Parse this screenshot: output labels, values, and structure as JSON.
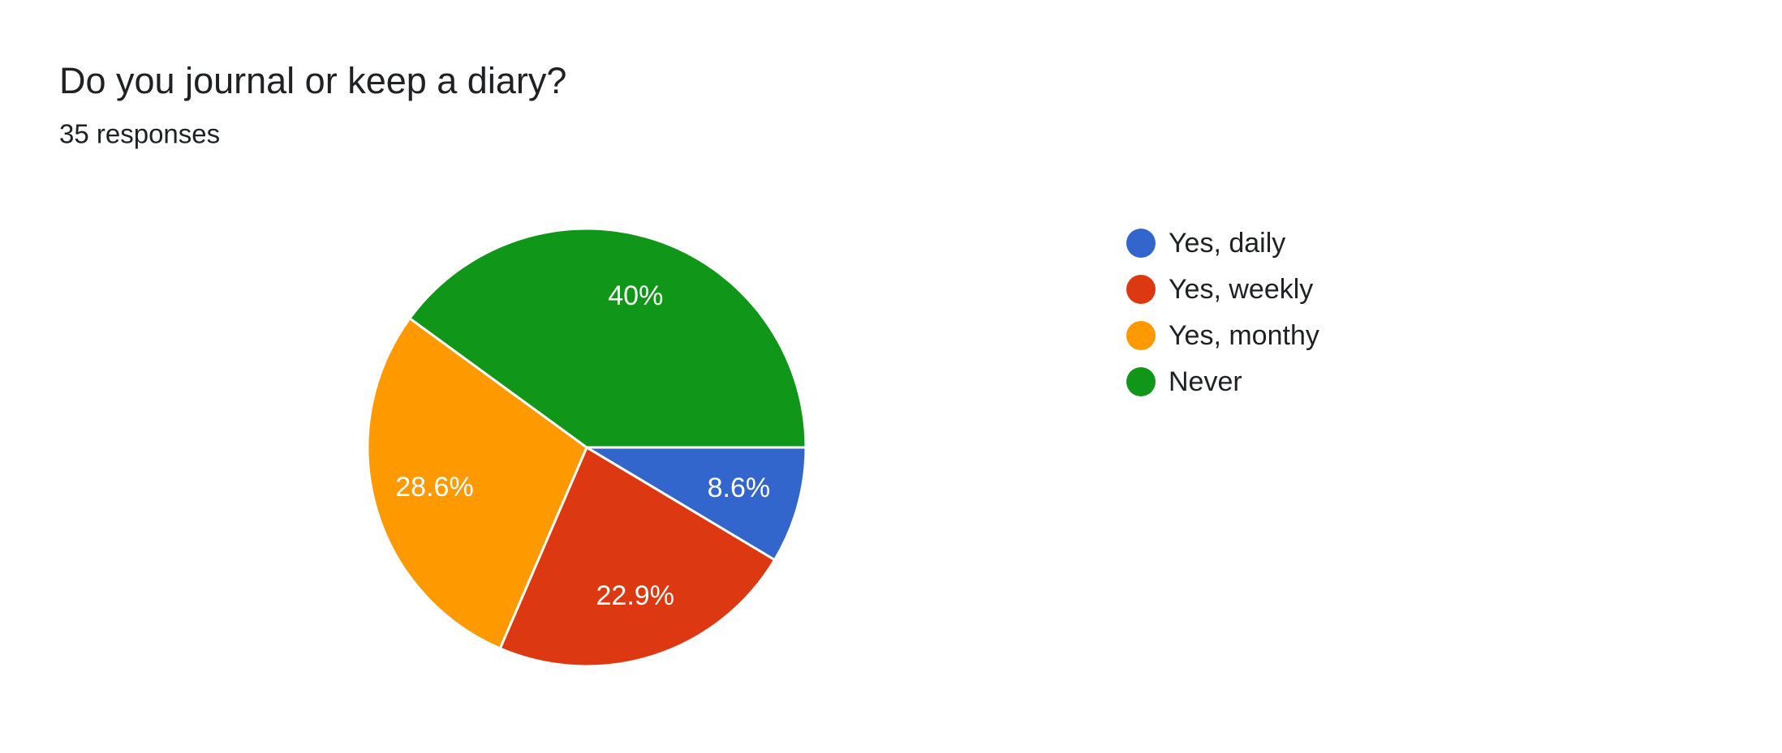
{
  "chart_data": {
    "type": "pie",
    "title": "Do you journal or keep a diary?",
    "subtitle": "35 responses",
    "categories": [
      "Yes, daily",
      "Yes, weekly",
      "Yes, monthy",
      "Never"
    ],
    "values": [
      8.6,
      22.9,
      28.6,
      40
    ],
    "value_labels": [
      "8.6%",
      "22.9%",
      "28.6%",
      "40%"
    ],
    "colors": [
      "#3366cc",
      "#dc3912",
      "#ff9900",
      "#109618"
    ],
    "legend": "right"
  }
}
